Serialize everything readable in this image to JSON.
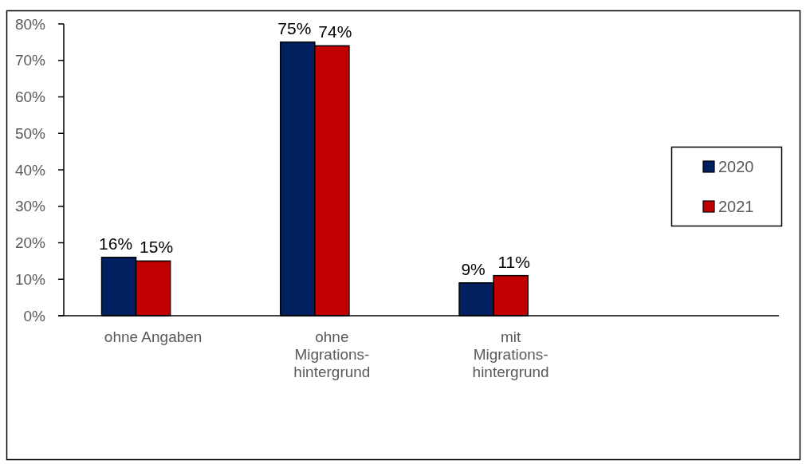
{
  "chart_data": {
    "type": "bar",
    "categories": [
      "ohne Angaben",
      "ohne\nMigrations-\nhintergrund",
      "mit\nMigrations-\nhintergrund",
      null
    ],
    "series": [
      {
        "name": "2020",
        "color": "#002060",
        "values": [
          16,
          75,
          9,
          null
        ],
        "value_labels": [
          "16%",
          "75%",
          "9%",
          null
        ]
      },
      {
        "name": "2021",
        "color": "#c00000",
        "values": [
          15,
          74,
          11,
          null
        ],
        "value_labels": [
          "15%",
          "74%",
          "11%",
          null
        ]
      }
    ],
    "ylim": [
      0,
      80
    ],
    "yticks": [
      {
        "value": 0,
        "label": "0%"
      },
      {
        "value": 10,
        "label": "10%"
      },
      {
        "value": 20,
        "label": "20%"
      },
      {
        "value": 30,
        "label": "30%"
      },
      {
        "value": 40,
        "label": "40%"
      },
      {
        "value": 50,
        "label": "50%"
      },
      {
        "value": 60,
        "label": "60%"
      },
      {
        "value": 70,
        "label": "70%"
      },
      {
        "value": 80,
        "label": "80%"
      }
    ],
    "legend": "right"
  }
}
